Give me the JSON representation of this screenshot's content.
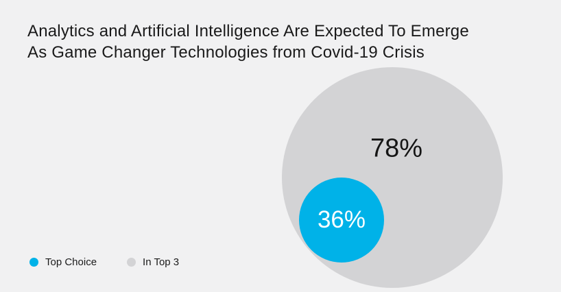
{
  "title": {
    "line1": "Analytics and Artificial Intelligence Are Expected To Emerge",
    "line2": "As Game Changer Technologies from Covid-19 Crisis"
  },
  "chart_data": {
    "type": "bubble",
    "layout": "nested-circles",
    "title": "Analytics and Artificial Intelligence Are Expected To Emerge As Game Changer Technologies from Covid-19 Crisis",
    "series": [
      {
        "name": "In Top 3",
        "value_pct": 78,
        "label": "78%",
        "color": "#d3d3d5",
        "label_color": "#151515"
      },
      {
        "name": "Top Choice",
        "value_pct": 36,
        "label": "36%",
        "color": "#00b2e8",
        "label_color": "#ffffff"
      }
    ],
    "legend": [
      {
        "label": "Top Choice",
        "color": "#00b2e8"
      },
      {
        "label": "In Top 3",
        "color": "#d3d3d5"
      }
    ],
    "legend_position": "bottom-left",
    "grid": false,
    "axes": false
  },
  "colors": {
    "background": "#f1f1f2",
    "title_text": "#1a1a1a",
    "accent_blue": "#00b2e8",
    "circle_gray": "#d3d3d5"
  }
}
